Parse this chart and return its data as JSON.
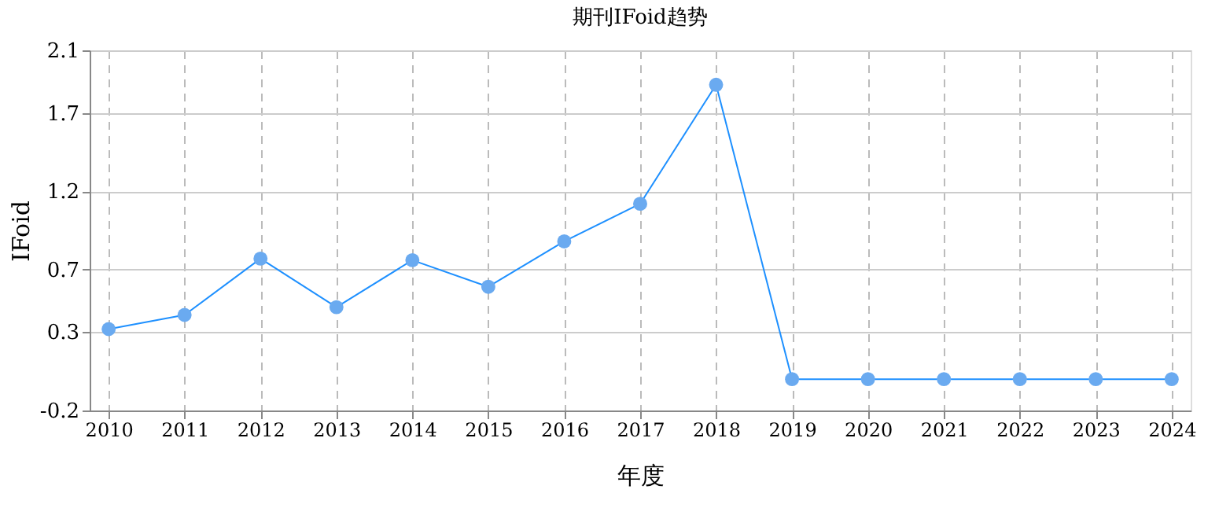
{
  "chart_data": {
    "type": "line",
    "title": "期刊IFoid趋势",
    "xlabel": "年度",
    "ylabel": "IFoid",
    "categories": [
      "2010",
      "2011",
      "2012",
      "2013",
      "2014",
      "2015",
      "2016",
      "2017",
      "2018",
      "2019",
      "2020",
      "2021",
      "2022",
      "2023",
      "2024"
    ],
    "series": [
      {
        "color": "#1e90ff",
        "values": [
          0.32,
          0.41,
          0.77,
          0.46,
          0.76,
          0.59,
          0.88,
          1.12,
          1.88,
          0,
          0,
          0,
          0,
          0,
          0
        ]
      }
    ],
    "ylim": [
      -0.2,
      2.1
    ],
    "yticks": [
      -0.2,
      0.3,
      0.7,
      1.2,
      1.7,
      2.1
    ],
    "grid": true,
    "marker": "circle",
    "line_style": "solid"
  }
}
